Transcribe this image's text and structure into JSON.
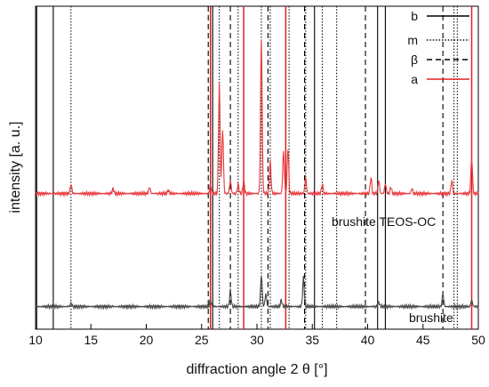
{
  "chart_data": {
    "type": "line",
    "xlabel": "diffraction angle 2 θ [°]",
    "ylabel": "intensity [a. u.]",
    "xlim": [
      10,
      50
    ],
    "ylim": [
      0,
      100
    ],
    "xticks": [
      10,
      15,
      20,
      25,
      30,
      35,
      40,
      45,
      50
    ],
    "grid": false,
    "legend_position": "top-right",
    "colors": {
      "b": "#000000",
      "m": "#000000",
      "beta": "#000000",
      "a": "#e02020",
      "teos": "#e8373c",
      "brushite": "#444444"
    },
    "reference_lines": [
      {
        "name": "b",
        "style": "solid",
        "color": "#000000",
        "x": [
          10.1,
          11.6,
          25.8,
          26.0,
          35.2,
          40.9,
          41.6
        ]
      },
      {
        "name": "m",
        "style": "dotted",
        "color": "#000000",
        "x": [
          13.2,
          26.6,
          28.3,
          30.4,
          31.2,
          32.9,
          34.4,
          35.9,
          37.2,
          47.8,
          48.1
        ]
      },
      {
        "name": "β",
        "style": "dashed",
        "color": "#000000",
        "x": [
          25.6,
          27.6,
          31.0,
          34.3,
          39.8,
          46.8
        ]
      },
      {
        "name": "a",
        "style": "solid",
        "color": "#e02020",
        "x": [
          25.8,
          28.8,
          32.6,
          49.4
        ]
      }
    ],
    "series": [
      {
        "name": "brushite TEOS-OC",
        "color": "#e8373c",
        "baseline": 42,
        "peaks": [
          [
            13.2,
            3
          ],
          [
            17.0,
            1.5
          ],
          [
            20.3,
            2
          ],
          [
            22.0,
            1
          ],
          [
            25.8,
            3
          ],
          [
            26.6,
            34
          ],
          [
            26.9,
            20
          ],
          [
            27.6,
            4
          ],
          [
            28.3,
            3
          ],
          [
            28.8,
            4
          ],
          [
            30.4,
            48
          ],
          [
            31.2,
            10
          ],
          [
            32.4,
            13
          ],
          [
            32.8,
            14
          ],
          [
            34.4,
            5
          ],
          [
            35.9,
            3
          ],
          [
            40.3,
            5
          ],
          [
            41.0,
            4
          ],
          [
            41.6,
            3
          ],
          [
            42.1,
            2
          ],
          [
            44.0,
            1.5
          ],
          [
            47.6,
            4
          ],
          [
            49.4,
            11
          ]
        ]
      },
      {
        "name": "brushite",
        "color": "#444444",
        "baseline": 7,
        "peaks": [
          [
            13.2,
            1
          ],
          [
            25.8,
            2
          ],
          [
            27.6,
            5
          ],
          [
            30.4,
            10
          ],
          [
            30.8,
            4
          ],
          [
            32.2,
            2
          ],
          [
            34.2,
            9
          ],
          [
            41.0,
            1.5
          ],
          [
            46.8,
            4
          ],
          [
            49.4,
            2
          ]
        ]
      }
    ],
    "annotations": [
      "brushite TEOS-OC",
      "brushite"
    ]
  }
}
